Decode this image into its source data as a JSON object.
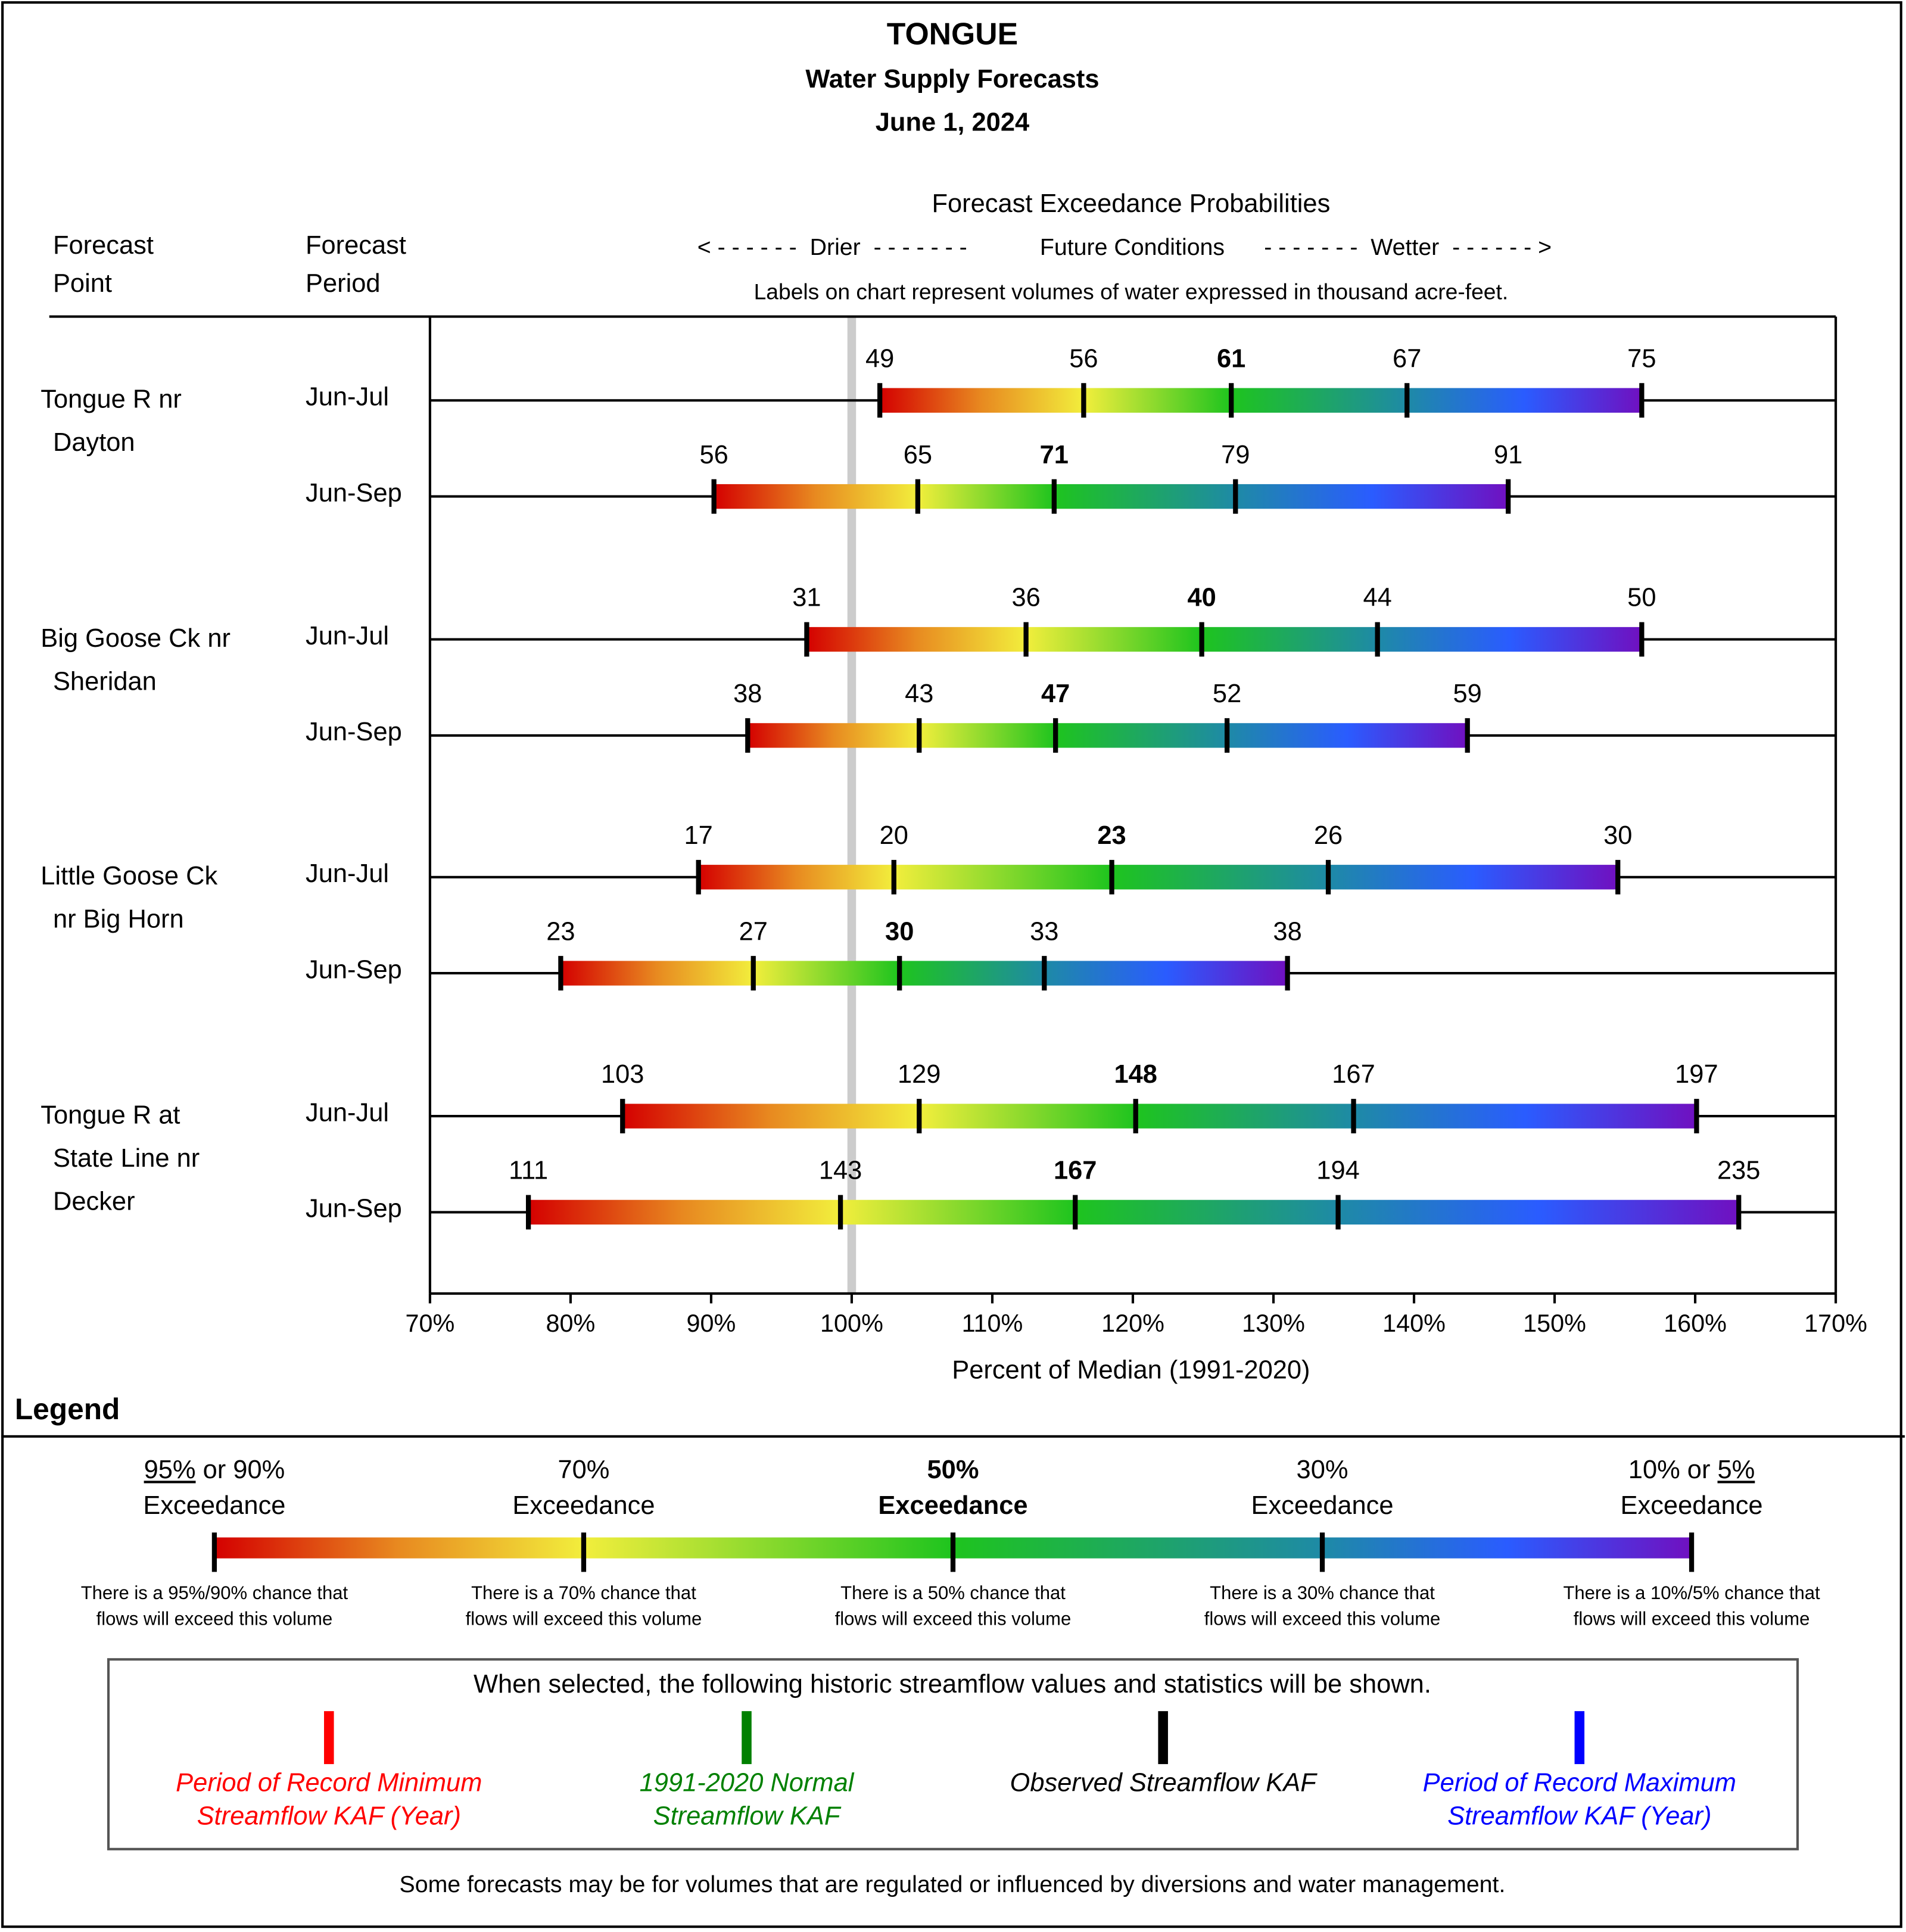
{
  "title": "TONGUE",
  "subtitle": "Water Supply Forecasts",
  "date": "June 1, 2024",
  "header": {
    "point_l1": "Forecast",
    "point_l2": "Point",
    "period_l1": "Forecast",
    "period_l2": "Period",
    "prob_title": "Forecast Exceedance Probabilities",
    "drier": "< - - - - - -  Drier  - - - - - - -",
    "future": "Future Conditions",
    "wetter": "- - - - - - -  Wetter  - - - - - - >",
    "labels_note": "Labels on chart represent volumes of water expressed in thousand acre-feet."
  },
  "chart_data": {
    "type": "range-bar",
    "xlabel": "Percent of Median (1991-2020)",
    "xlim": [
      70,
      170
    ],
    "xticks": [
      "70%",
      "80%",
      "90%",
      "100%",
      "110%",
      "120%",
      "130%",
      "140%",
      "150%",
      "160%",
      "170%"
    ],
    "median_line": 100,
    "colors": [
      "#d40000",
      "#e88a20",
      "#f2ee3c",
      "#1ec41e",
      "#1e8aa6",
      "#2a5cff",
      "#7010c0"
    ],
    "points": [
      {
        "name_l1": "Tongue R nr",
        "name_l2": "Dayton",
        "name_l3": "",
        "rows": [
          {
            "period": "Jun-Jul",
            "volumes": [
              "49",
              "56",
              "61",
              "67",
              "75"
            ],
            "pct": [
              102.0,
              116.5,
              127.0,
              139.5,
              156.2
            ]
          },
          {
            "period": "Jun-Sep",
            "volumes": [
              "56",
              "65",
              "71",
              "79",
              "91"
            ],
            "pct": [
              90.2,
              104.7,
              114.4,
              127.3,
              146.7
            ]
          }
        ]
      },
      {
        "name_l1": "Big Goose Ck nr",
        "name_l2": "Sheridan",
        "name_l3": "",
        "rows": [
          {
            "period": "Jun-Jul",
            "volumes": [
              "31",
              "36",
              "40",
              "44",
              "50"
            ],
            "pct": [
              96.8,
              112.4,
              124.9,
              137.4,
              156.2
            ]
          },
          {
            "period": "Jun-Sep",
            "volumes": [
              "38",
              "43",
              "47",
              "52",
              "59"
            ],
            "pct": [
              92.6,
              104.8,
              114.5,
              126.7,
              143.8
            ]
          }
        ]
      },
      {
        "name_l1": "Little Goose Ck",
        "name_l2": "nr Big Horn",
        "name_l3": "",
        "rows": [
          {
            "period": "Jun-Jul",
            "volumes": [
              "17",
              "20",
              "23",
              "26",
              "30"
            ],
            "pct": [
              89.1,
              103.0,
              118.5,
              133.9,
              154.5
            ]
          },
          {
            "period": "Jun-Sep",
            "volumes": [
              "23",
              "27",
              "30",
              "33",
              "38"
            ],
            "pct": [
              79.3,
              93.0,
              103.4,
              113.7,
              131.0
            ]
          }
        ]
      },
      {
        "name_l1": "Tongue R at",
        "name_l2": "State Line nr",
        "name_l3": "Decker",
        "rows": [
          {
            "period": "Jun-Jul",
            "volumes": [
              "103",
              "129",
              "148",
              "167",
              "197"
            ],
            "pct": [
              83.7,
              104.8,
              120.2,
              135.7,
              160.1
            ]
          },
          {
            "period": "Jun-Sep",
            "volumes": [
              "111",
              "143",
              "167",
              "194",
              "235"
            ],
            "pct": [
              77.0,
              99.2,
              115.9,
              134.6,
              163.1
            ]
          }
        ]
      }
    ]
  },
  "legend": {
    "title": "Legend",
    "items": [
      {
        "pre": "95%",
        "mid": " or 90%",
        "post": "",
        "l2": "Exceedance",
        "d1": "There is a 95%/90% chance that",
        "d2": "flows will exceed this volume"
      },
      {
        "pre": "",
        "mid": "70%",
        "post": "",
        "l2": "Exceedance",
        "d1": "There is a 70% chance that",
        "d2": "flows will exceed this volume"
      },
      {
        "pre": "",
        "mid": "50%",
        "post": "",
        "l2": "Exceedance",
        "d1": "There is a 50% chance that",
        "d2": "flows will exceed this volume"
      },
      {
        "pre": "",
        "mid": "30%",
        "post": "",
        "l2": "Exceedance",
        "d1": "There is a 30% chance that",
        "d2": "flows will exceed this volume"
      },
      {
        "pre": "",
        "mid": "10% or ",
        "post": "5%",
        "l2": "Exceedance",
        "d1": "There is a 10%/5% chance that",
        "d2": "flows will exceed this volume"
      }
    ],
    "box_title": "When selected, the following historic streamflow values and statistics will be shown.",
    "stats": [
      {
        "l1": "Period of Record Minimum",
        "l2": "Streamflow KAF (Year)",
        "color": "#ff0000"
      },
      {
        "l1": "1991-2020 Normal",
        "l2": "Streamflow KAF",
        "color": "#008000"
      },
      {
        "l1": "Observed Streamflow KAF",
        "l2": "",
        "color": "#000000"
      },
      {
        "l1": "Period of Record Maximum",
        "l2": "Streamflow KAF (Year)",
        "color": "#0000ff"
      }
    ],
    "footnote": "Some forecasts may be for volumes that are regulated or influenced by diversions and water management."
  }
}
